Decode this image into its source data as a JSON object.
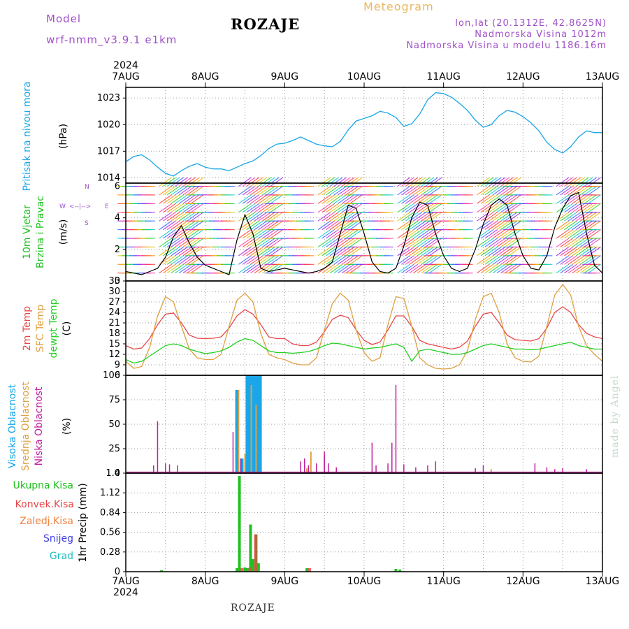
{
  "header": {
    "model_label": "Model",
    "model_name": "wrf-nmm_v3.9.1  e1km",
    "station": "ROZAJE",
    "title": "Meteogram",
    "coords": "lon,lat (20.1312E, 42.8625N)",
    "elevation": "Nadmorska Visina 1012m",
    "model_elevation": "Nadmorska Visina u modelu 1186.16m",
    "year": "2024"
  },
  "footer": {
    "station": "ROZAJE",
    "credit": "made by Angel"
  },
  "colors": {
    "pressure": "#1aa6e8",
    "temp2m": "#e84848",
    "sfc_temp": "#e0a040",
    "dewpt": "#20d020",
    "high_cloud": "#1aa6e8",
    "mid_cloud": "#e0a040",
    "low_cloud": "#c020a0",
    "total_precip": "#20c020",
    "conv_precip": "#e84848",
    "frozen_precip": "#f08040",
    "snow": "#4040e0",
    "hail": "#20c0c0",
    "wind_speed": "#000000"
  },
  "chart_data": [
    {
      "type": "line",
      "panel": "pressure",
      "ylabels": [
        "Pritisak na nivou mora",
        "(hPa)"
      ],
      "x_ticks": [
        "7AUG",
        "8AUG",
        "9AUG",
        "10AUG",
        "11AUG",
        "12AUG",
        "13AUG"
      ],
      "x_range_days": [
        0,
        6
      ],
      "ylim": [
        1013.4,
        1024.2
      ],
      "y_ticks": [
        1014,
        1017,
        1020,
        1023
      ],
      "grid": true,
      "x": [
        0,
        0.1,
        0.2,
        0.3,
        0.4,
        0.5,
        0.6,
        0.7,
        0.8,
        0.9,
        1.0,
        1.1,
        1.2,
        1.3,
        1.4,
        1.5,
        1.6,
        1.7,
        1.8,
        1.9,
        2.0,
        2.1,
        2.2,
        2.3,
        2.4,
        2.5,
        2.6,
        2.7,
        2.8,
        2.9,
        3.0,
        3.1,
        3.2,
        3.3,
        3.4,
        3.5,
        3.6,
        3.7,
        3.8,
        3.9,
        4.0,
        4.1,
        4.2,
        4.3,
        4.4,
        4.5,
        4.6,
        4.7,
        4.8,
        4.9,
        5.0,
        5.1,
        5.2,
        5.3,
        5.4,
        5.5,
        5.6,
        5.7,
        5.8,
        5.9,
        6.0
      ],
      "values": [
        1015.8,
        1016.4,
        1016.6,
        1016.0,
        1015.2,
        1014.5,
        1014.2,
        1014.8,
        1015.3,
        1015.6,
        1015.2,
        1015.0,
        1015.0,
        1014.8,
        1015.2,
        1015.6,
        1015.9,
        1016.5,
        1017.3,
        1017.8,
        1017.9,
        1018.2,
        1018.6,
        1018.2,
        1017.8,
        1017.6,
        1017.5,
        1018.1,
        1019.4,
        1020.4,
        1020.7,
        1021.0,
        1021.5,
        1021.3,
        1020.8,
        1019.8,
        1020.1,
        1021.2,
        1022.8,
        1023.6,
        1023.5,
        1023.1,
        1022.4,
        1021.6,
        1020.5,
        1019.7,
        1020.0,
        1021.0,
        1021.6,
        1021.4,
        1020.9,
        1020.2,
        1019.3,
        1018.0,
        1017.2,
        1016.8,
        1017.5,
        1018.6,
        1019.3,
        1019.1,
        1019.1
      ]
    },
    {
      "type": "line",
      "panel": "wind",
      "ylabels": [
        "10m Vjetar",
        "Brzina i Pravac",
        "(m/s)"
      ],
      "legend": [
        "W",
        "<--|-->",
        "E",
        "S",
        "N"
      ],
      "ylim": [
        0,
        6.2
      ],
      "y_ticks": [
        0,
        2,
        4,
        6
      ],
      "grid": true,
      "x": [
        0,
        0.1,
        0.2,
        0.3,
        0.4,
        0.5,
        0.6,
        0.7,
        0.8,
        0.9,
        1.0,
        1.1,
        1.2,
        1.3,
        1.4,
        1.5,
        1.6,
        1.7,
        1.8,
        1.9,
        2.0,
        2.1,
        2.2,
        2.3,
        2.4,
        2.5,
        2.6,
        2.7,
        2.8,
        2.9,
        3.0,
        3.1,
        3.2,
        3.3,
        3.4,
        3.5,
        3.6,
        3.7,
        3.8,
        3.9,
        4.0,
        4.1,
        4.2,
        4.3,
        4.4,
        4.5,
        4.6,
        4.7,
        4.8,
        4.9,
        5.0,
        5.1,
        5.2,
        5.3,
        5.4,
        5.5,
        5.6,
        5.7,
        5.8,
        5.9,
        6.0
      ],
      "values": [
        0.6,
        0.5,
        0.4,
        0.6,
        0.8,
        1.5,
        2.8,
        3.5,
        2.4,
        1.5,
        1.0,
        0.8,
        0.6,
        0.4,
        2.6,
        4.2,
        3.0,
        0.8,
        0.6,
        0.7,
        0.8,
        0.7,
        0.6,
        0.5,
        0.6,
        0.8,
        1.2,
        3.0,
        4.8,
        4.6,
        3.0,
        1.2,
        0.6,
        0.5,
        0.8,
        2.2,
        4.0,
        5.0,
        4.8,
        3.0,
        1.6,
        0.8,
        0.6,
        0.8,
        2.0,
        3.6,
        4.8,
        5.2,
        4.8,
        3.0,
        1.6,
        0.8,
        0.7,
        1.6,
        3.4,
        4.6,
        5.4,
        5.6,
        3.0,
        1.0,
        0.5
      ]
    },
    {
      "type": "line",
      "panel": "temperature",
      "ylabels": [
        "2m Temp",
        "SFC Temp",
        "dewpt Temp",
        "(C)"
      ],
      "ylim": [
        6,
        33
      ],
      "y_ticks": [
        6,
        9,
        12,
        15,
        18,
        21,
        24,
        27,
        30,
        33
      ],
      "grid": true,
      "x": [
        0,
        0.1,
        0.2,
        0.3,
        0.4,
        0.5,
        0.6,
        0.7,
        0.8,
        0.9,
        1.0,
        1.1,
        1.2,
        1.3,
        1.4,
        1.5,
        1.6,
        1.7,
        1.8,
        1.9,
        2.0,
        2.1,
        2.2,
        2.3,
        2.4,
        2.5,
        2.6,
        2.7,
        2.8,
        2.9,
        3.0,
        3.1,
        3.2,
        3.3,
        3.4,
        3.5,
        3.6,
        3.7,
        3.8,
        3.9,
        4.0,
        4.1,
        4.2,
        4.3,
        4.4,
        4.5,
        4.6,
        4.7,
        4.8,
        4.9,
        5.0,
        5.1,
        5.2,
        5.3,
        5.4,
        5.5,
        5.6,
        5.7,
        5.8,
        5.9,
        6.0
      ],
      "series": [
        {
          "name": "2m Temp",
          "values": [
            14.5,
            13.5,
            13.8,
            16.5,
            20.5,
            23.5,
            23.8,
            21.0,
            17.5,
            16.6,
            16.5,
            16.6,
            17.0,
            19.5,
            23.0,
            24.8,
            23.5,
            20.5,
            17.0,
            16.5,
            16.5,
            15.0,
            14.5,
            14.5,
            15.5,
            18.5,
            22.0,
            23.2,
            22.5,
            19.0,
            16.0,
            14.8,
            15.5,
            19.0,
            23.0,
            23.0,
            20.0,
            16.0,
            15.0,
            14.5,
            14.0,
            13.5,
            14.0,
            15.8,
            20.0,
            23.5,
            24.0,
            21.0,
            17.5,
            16.2,
            16.0,
            15.8,
            16.5,
            19.5,
            24.0,
            25.6,
            24.0,
            20.5,
            18.0,
            17.0,
            16.5
          ]
        },
        {
          "name": "SFC Temp",
          "values": [
            10.0,
            8.0,
            8.5,
            14.0,
            23.0,
            28.5,
            27.0,
            20.0,
            13.5,
            11.0,
            10.5,
            10.5,
            12.0,
            20.0,
            27.5,
            29.5,
            27.0,
            18.0,
            12.0,
            11.0,
            10.5,
            9.5,
            9.0,
            9.0,
            11.0,
            19.0,
            26.5,
            29.5,
            27.5,
            19.0,
            12.5,
            10.0,
            11.0,
            20.5,
            28.5,
            28.0,
            20.0,
            11.0,
            9.0,
            8.0,
            7.8,
            8.0,
            9.0,
            13.0,
            22.0,
            28.5,
            29.5,
            24.0,
            15.0,
            11.0,
            10.0,
            9.8,
            11.5,
            20.0,
            29.0,
            32.0,
            29.0,
            20.0,
            14.5,
            12.0,
            10.0
          ]
        },
        {
          "name": "dewpt Temp",
          "values": [
            10.5,
            9.5,
            10.0,
            11.5,
            13.0,
            14.5,
            15.0,
            14.5,
            13.5,
            12.8,
            12.2,
            12.5,
            13.0,
            14.0,
            15.5,
            16.5,
            16.0,
            14.5,
            13.0,
            12.5,
            12.5,
            12.3,
            12.5,
            12.8,
            13.5,
            14.5,
            15.2,
            15.0,
            14.5,
            14.0,
            13.5,
            13.8,
            14.0,
            14.5,
            15.0,
            14.0,
            10.0,
            13.0,
            13.5,
            13.0,
            12.5,
            12.0,
            12.0,
            12.5,
            13.5,
            14.5,
            15.0,
            14.5,
            14.0,
            13.5,
            13.5,
            13.3,
            13.5,
            14.0,
            14.5,
            15.0,
            15.5,
            14.5,
            14.0,
            13.5,
            13.5
          ]
        }
      ]
    },
    {
      "type": "bar",
      "panel": "cloud",
      "ylabels": [
        "Visoka Oblacnost",
        "Srednja Oblacnost",
        "Niska Oblacnost",
        "(%)"
      ],
      "ylim": [
        0,
        100
      ],
      "y_ticks": [
        0,
        25,
        50,
        75,
        100
      ],
      "grid": true,
      "series": [
        {
          "name": "Visoka Oblacnost",
          "x": [
            1.4,
            1.46,
            1.53,
            1.57,
            1.61,
            1.65,
            1.69
          ],
          "values": [
            85,
            15,
            100,
            100,
            100,
            100,
            100
          ]
        },
        {
          "name": "Srednja Oblacnost",
          "x": [
            1.42,
            1.5,
            1.58,
            1.64,
            2.28,
            2.33,
            2.5,
            4.6
          ],
          "values": [
            85,
            20,
            90,
            70,
            5,
            22,
            18,
            4
          ]
        },
        {
          "name": "Niska Oblacnost",
          "x": [
            0.35,
            0.4,
            0.5,
            0.55,
            0.65,
            1.35,
            1.45,
            2.2,
            2.25,
            2.3,
            2.4,
            2.5,
            2.55,
            2.65,
            3.1,
            3.15,
            3.3,
            3.35,
            3.4,
            3.5,
            3.65,
            3.8,
            3.9,
            4.4,
            4.5,
            5.15,
            5.3,
            5.4,
            5.5,
            5.8
          ],
          "values": [
            8,
            53,
            10,
            9,
            8,
            42,
            15,
            12,
            15,
            8,
            10,
            22,
            10,
            6,
            31,
            8,
            10,
            31,
            90,
            9,
            6,
            8,
            12,
            5,
            8,
            10,
            6,
            4,
            5,
            4
          ]
        }
      ]
    },
    {
      "type": "bar",
      "panel": "precip",
      "ylabels": [
        "Ukupna  Kisa",
        "Konvek.Kisa",
        "Zaledj.Kisa",
        "Snijeg",
        "Grad",
        "1hr Precip (mm)"
      ],
      "ylim": [
        0,
        1.4
      ],
      "y_ticks": [
        0,
        0.28,
        0.56,
        0.84,
        1.12,
        1.4
      ],
      "grid": true,
      "series": [
        {
          "name": "Ukupna  Kisa",
          "x": [
            0.45,
            1.4,
            1.43,
            1.5,
            1.53,
            1.57,
            1.6,
            1.64,
            1.67,
            2.28,
            3.4,
            3.45
          ],
          "values": [
            0.02,
            0.05,
            1.36,
            0.06,
            0.05,
            0.67,
            0.18,
            0.53,
            0.12,
            0.05,
            0.04,
            0.03
          ]
        },
        {
          "name": "Konvek.Kisa",
          "x": [
            1.45,
            1.55,
            1.62,
            2.3
          ],
          "values": [
            0.05,
            0.06,
            0.53,
            0.05
          ]
        }
      ]
    }
  ]
}
